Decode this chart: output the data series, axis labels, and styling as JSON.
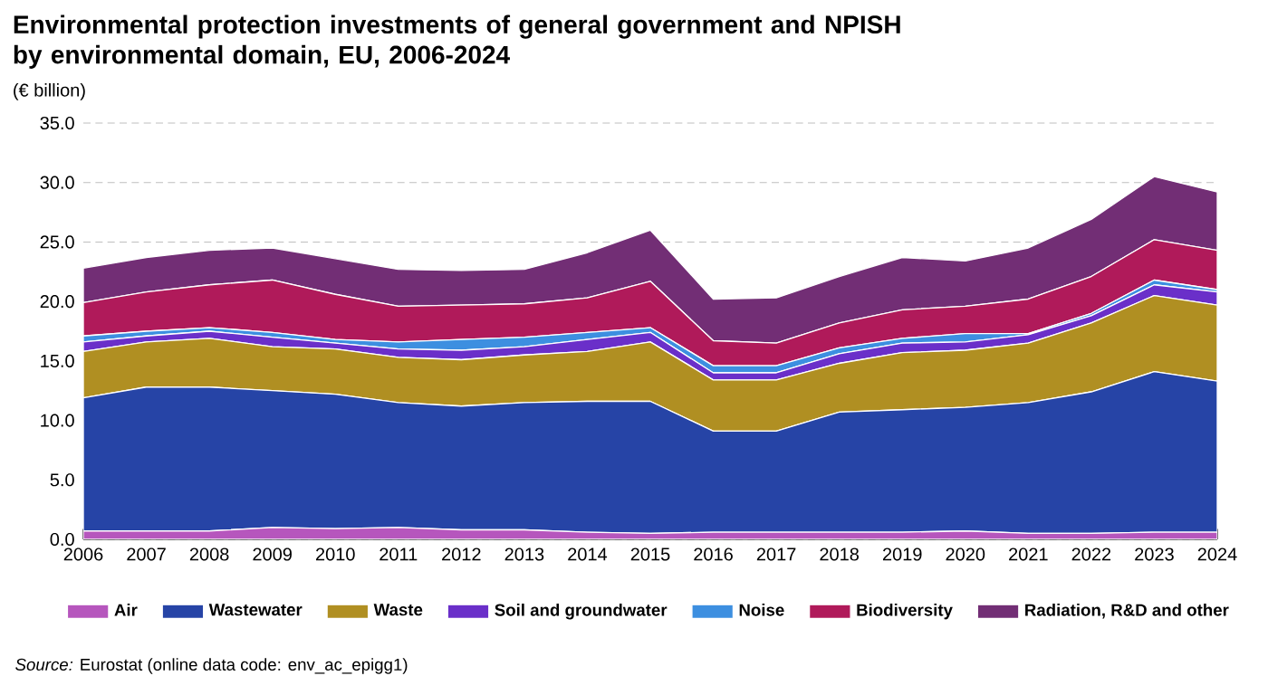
{
  "chart_data": {
    "type": "area",
    "title": "Environmental protection investments of general government and NPISH by environmental domain, EU, 2006-2024",
    "ylabel": "(€ billion)",
    "annotations": [
      "*Source:* Eurostat (online data code: env_ac_epigg1)"
    ],
    "stacked": true,
    "x": [
      2006,
      2007,
      2008,
      2009,
      2010,
      2011,
      2012,
      2013,
      2014,
      2015,
      2016,
      2017,
      2018,
      2019,
      2020,
      2021,
      2022,
      2023,
      2024
    ],
    "xlim": [
      2006,
      2024
    ],
    "xticks": [
      2006,
      2007,
      2008,
      2009,
      2010,
      2011,
      2012,
      2013,
      2014,
      2015,
      2016,
      2017,
      2018,
      2019,
      2020,
      2021,
      2022,
      2023,
      2024
    ],
    "ylim": [
      0,
      35
    ],
    "yticks": [
      {
        "value": 0,
        "label": "0.0"
      },
      {
        "value": 5,
        "label": "5.0"
      },
      {
        "value": 10,
        "label": "10.0"
      },
      {
        "value": 15,
        "label": "15.0"
      },
      {
        "value": 20,
        "label": "20.0"
      },
      {
        "value": 25,
        "label": "25.0"
      },
      {
        "value": 30,
        "label": "30.0"
      },
      {
        "value": 35,
        "label": "35.0"
      }
    ],
    "grid": "y",
    "legend": "bottom",
    "series": [
      {
        "name": "Air",
        "color": "#b656bd",
        "values": [
          0.7,
          0.7,
          0.7,
          1.0,
          0.9,
          1.0,
          0.8,
          0.8,
          0.6,
          0.5,
          0.6,
          0.6,
          0.6,
          0.6,
          0.7,
          0.5,
          0.5,
          0.6,
          0.6
        ]
      },
      {
        "name": "Wastewater",
        "color": "#2644a6",
        "values": [
          11.2,
          12.1,
          12.1,
          11.5,
          11.3,
          10.5,
          10.4,
          10.7,
          11.0,
          11.1,
          8.5,
          8.5,
          10.1,
          10.3,
          10.4,
          11.0,
          11.9,
          13.5,
          12.7
        ]
      },
      {
        "name": "Waste",
        "color": "#b08f22",
        "values": [
          3.9,
          3.8,
          4.1,
          3.7,
          3.8,
          3.8,
          3.9,
          4.0,
          4.2,
          5.0,
          4.3,
          4.3,
          4.1,
          4.8,
          4.8,
          5.0,
          5.8,
          6.4,
          6.4
        ]
      },
      {
        "name": "Soil and groundwater",
        "color": "#6a2fc9",
        "values": [
          0.8,
          0.5,
          0.6,
          0.8,
          0.5,
          0.7,
          0.8,
          0.7,
          1.0,
          0.8,
          0.6,
          0.6,
          0.8,
          0.8,
          0.7,
          0.7,
          0.6,
          0.9,
          1.1
        ]
      },
      {
        "name": "Noise",
        "color": "#3d8fe0",
        "values": [
          0.5,
          0.4,
          0.3,
          0.4,
          0.3,
          0.6,
          0.9,
          0.8,
          0.6,
          0.4,
          0.6,
          0.6,
          0.5,
          0.4,
          0.7,
          0.1,
          0.2,
          0.4,
          0.2
        ]
      },
      {
        "name": "Biodiversity",
        "color": "#b01a5a",
        "values": [
          2.8,
          3.3,
          3.6,
          4.4,
          3.8,
          3.0,
          2.9,
          2.8,
          2.9,
          3.9,
          2.1,
          1.9,
          2.1,
          2.4,
          2.3,
          2.9,
          3.1,
          3.4,
          3.3
        ]
      },
      {
        "name": "Radiation, R&D and other",
        "color": "#722e75",
        "values": [
          2.9,
          2.9,
          2.9,
          2.7,
          3.0,
          3.1,
          2.9,
          2.9,
          3.8,
          4.3,
          3.5,
          3.8,
          3.9,
          4.4,
          3.8,
          4.3,
          4.8,
          5.3,
          4.9
        ]
      }
    ]
  }
}
